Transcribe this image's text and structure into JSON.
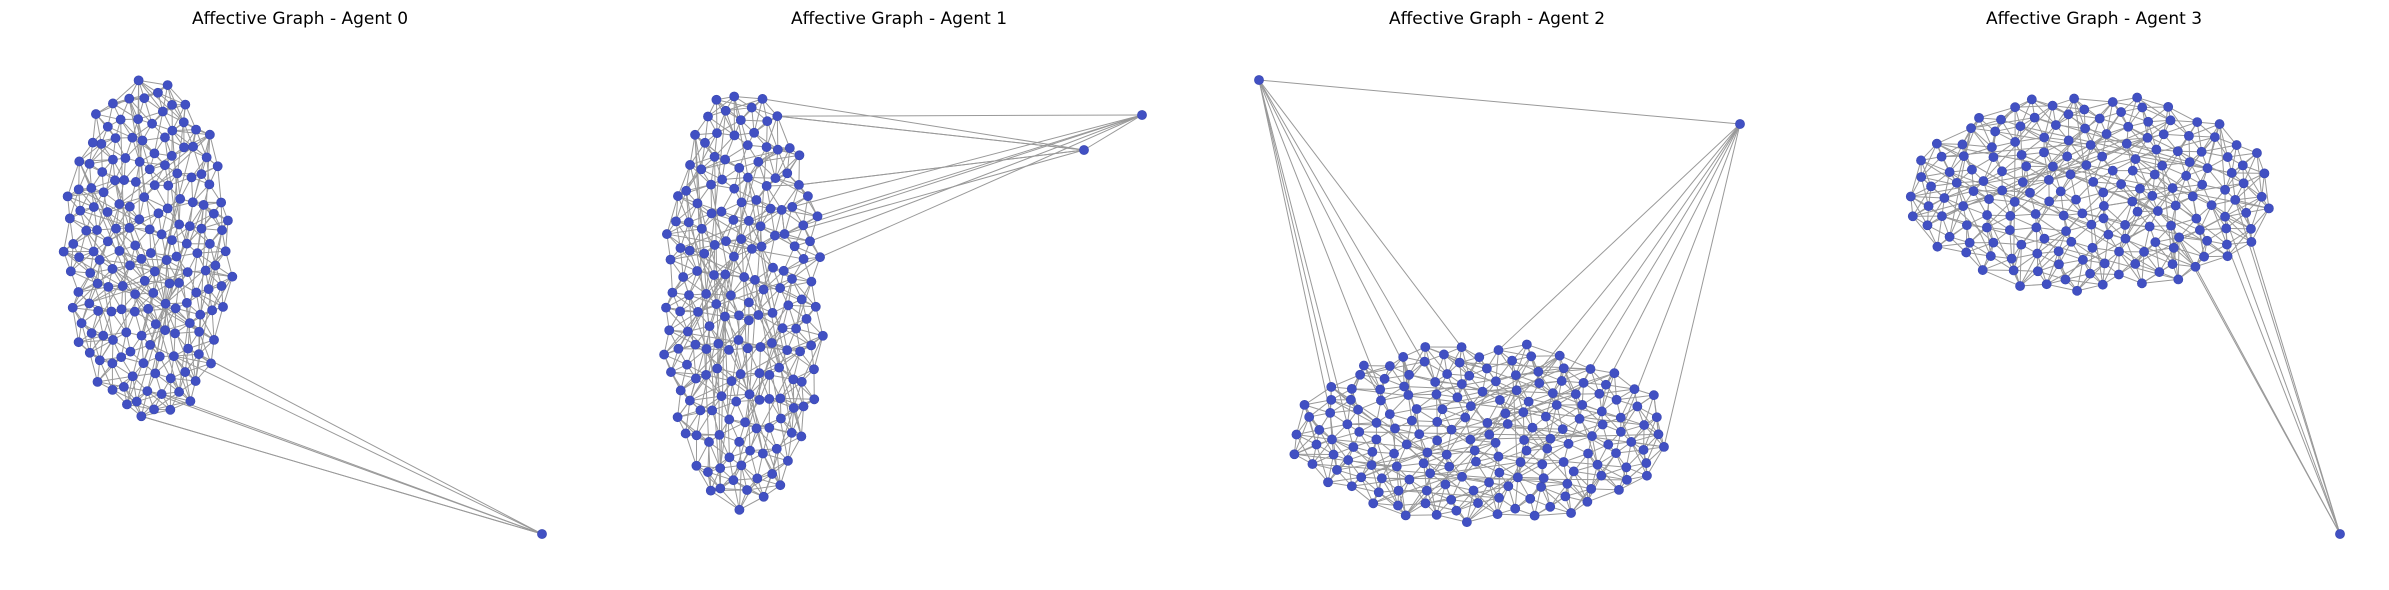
{
  "figure": {
    "panels": [
      {
        "title": "Affective Graph - Agent 0"
      },
      {
        "title": "Affective Graph - Agent 1"
      },
      {
        "title": "Affective Graph - Agent 2"
      },
      {
        "title": "Affective Graph - Agent 3"
      }
    ]
  },
  "style": {
    "node_color": "#4150c3",
    "edge_color": "#999999",
    "background": "#ffffff"
  }
}
